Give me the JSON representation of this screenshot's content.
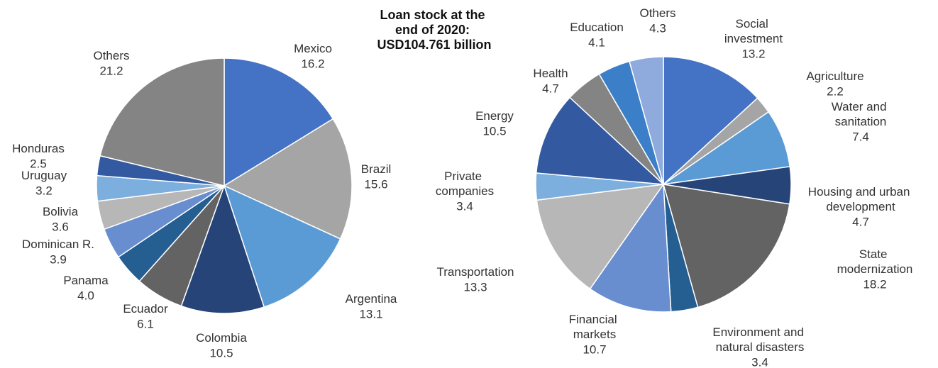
{
  "title": "Loan stock at the end of 2020: USD104.761 billion",
  "chart_data": [
    {
      "type": "pie",
      "categories": [
        "Mexico",
        "Brazil",
        "Argentina",
        "Colombia",
        "Ecuador",
        "Panama",
        "Dominican R.",
        "Bolivia",
        "Uruguay",
        "Honduras",
        "Others"
      ],
      "values": [
        16.2,
        15.6,
        13.1,
        10.5,
        6.1,
        4.0,
        3.9,
        3.6,
        3.2,
        2.5,
        21.2
      ],
      "value_labels": [
        "16.2",
        "15.6",
        "13.1",
        "10.5",
        "6.1",
        "4.0",
        "3.9",
        "3.6",
        "3.2",
        "2.5",
        "21.2"
      ],
      "colors": [
        "#4472c4",
        "#a5a5a5",
        "#5b9bd5",
        "#264478",
        "#636363",
        "#255e91",
        "#698ed0",
        "#b7b7b7",
        "#7cafdd",
        "#335aa1",
        "#848484"
      ]
    },
    {
      "type": "pie",
      "categories": [
        "Social investment",
        "Agriculture",
        "Water and sanitation",
        "Housing and urban development",
        "State modernization",
        "Environment and natural disasters",
        "Financial markets",
        "Transportation",
        "Private companies",
        "Energy",
        "Health",
        "Education",
        "Others"
      ],
      "values": [
        13.2,
        2.2,
        7.4,
        4.7,
        18.2,
        3.4,
        10.7,
        13.3,
        3.4,
        10.5,
        4.7,
        4.1,
        4.3
      ],
      "value_labels": [
        "13.2",
        "2.2",
        "7.4",
        "4.7",
        "18.2",
        "3.4",
        "10.7",
        "13.3",
        "3.4",
        "10.5",
        "4.7",
        "4.1",
        "4.3"
      ],
      "colors": [
        "#4472c4",
        "#a5a5a5",
        "#5b9bd5",
        "#264478",
        "#636363",
        "#255e91",
        "#698ed0",
        "#b7b7b7",
        "#7cafdd",
        "#335aa1",
        "#848484",
        "#3a7fc8",
        "#8faadc"
      ]
    }
  ]
}
